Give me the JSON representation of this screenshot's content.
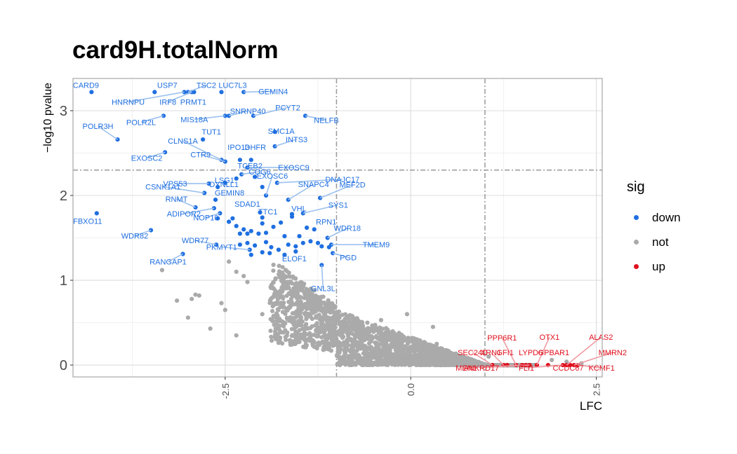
{
  "chart_data": {
    "type": "scatter",
    "title": "card9H.totalNorm",
    "xlabel": "LFC",
    "ylabel": "−log10 pvalue",
    "xlim": [
      -4.55,
      2.58
    ],
    "ylim": [
      -0.14,
      3.38
    ],
    "x_ticks": [
      -2.5,
      0.0,
      2.5
    ],
    "x_tick_labels": [
      "-2.5",
      "0.0",
      "2.5"
    ],
    "y_ticks": [
      0,
      1,
      2,
      3
    ],
    "y_tick_labels": [
      "0",
      "1",
      "2",
      "3"
    ],
    "grid": true,
    "threshold_lines": {
      "x": [
        -1,
        1
      ],
      "y": [
        2.3
      ]
    },
    "legend": {
      "title": "sig",
      "position": "right",
      "entries": [
        {
          "name": "down",
          "color": "#1f6fe0"
        },
        {
          "name": "not",
          "color": "#aaaaaa"
        },
        {
          "name": "up",
          "color": "#e0101e"
        }
      ]
    },
    "series": [
      {
        "name": "down",
        "color": "#1f6fe0",
        "points": [
          {
            "label": "CARD9",
            "x": -4.3,
            "y": 3.22
          },
          {
            "label": "USP7",
            "x": -3.45,
            "y": 3.22
          },
          {
            "label": "TSC2",
            "x": -3.0,
            "y": 3.22
          },
          {
            "label": "LUC7L3",
            "x": -2.55,
            "y": 3.22
          },
          {
            "label": "GEMIN4",
            "x": -2.25,
            "y": 3.22
          },
          {
            "label": "HNRNPU",
            "x": -3.05,
            "y": 3.22
          },
          {
            "label": "IRF8",
            "x": -2.95,
            "y": 3.22
          },
          {
            "label": "PRMT1",
            "x": -2.92,
            "y": 3.22
          },
          {
            "label": "SNRNP40",
            "x": -2.45,
            "y": 2.94
          },
          {
            "label": "PCYT2",
            "x": -2.12,
            "y": 2.94
          },
          {
            "label": "POLR2L",
            "x": -3.33,
            "y": 2.94
          },
          {
            "label": "MIS18A",
            "x": -2.5,
            "y": 2.94
          },
          {
            "label": "SMC1A",
            "x": -1.83,
            "y": 2.75
          },
          {
            "label": "NELFB",
            "x": -1.42,
            "y": 2.94
          },
          {
            "label": "POLR3H",
            "x": -3.95,
            "y": 2.66
          },
          {
            "label": "TUT1",
            "x": -2.8,
            "y": 2.66
          },
          {
            "label": "INTS3",
            "x": -1.83,
            "y": 2.58
          },
          {
            "label": "CLNS1A",
            "x": -2.55,
            "y": 2.42
          },
          {
            "label": "EXOSC2",
            "x": -3.31,
            "y": 2.51
          },
          {
            "label": "CTR9",
            "x": -2.5,
            "y": 2.4
          },
          {
            "label": "IPO13",
            "x": -2.3,
            "y": 2.42
          },
          {
            "label": "DHFR",
            "x": -2.15,
            "y": 2.42
          },
          {
            "label": "EXOSC9",
            "x": -2.2,
            "y": 2.33
          },
          {
            "label": "DNAJC17",
            "x": -1.8,
            "y": 2.15
          },
          {
            "label": "VPS53",
            "x": -2.72,
            "y": 2.14
          },
          {
            "label": "LSG1",
            "x": -2.5,
            "y": 2.15
          },
          {
            "label": "COG6",
            "x": -2.28,
            "y": 2.25
          },
          {
            "label": "SNAPC4",
            "x": -1.65,
            "y": 1.95
          },
          {
            "label": "CSNK1A1",
            "x": -2.78,
            "y": 2.03
          },
          {
            "label": "DYNLL1",
            "x": -2.6,
            "y": 2.1
          },
          {
            "label": "TCEB2",
            "x": -2.1,
            "y": 2.22
          },
          {
            "label": "EXOSC6",
            "x": -1.95,
            "y": 2.0
          },
          {
            "label": "MEF2D",
            "x": -1.22,
            "y": 1.97
          },
          {
            "label": "RNMT",
            "x": -2.9,
            "y": 1.86
          },
          {
            "label": "GEMIN8",
            "x": -2.63,
            "y": 1.95
          },
          {
            "label": "VHL",
            "x": -1.6,
            "y": 1.78
          },
          {
            "label": "SYS1",
            "x": -1.45,
            "y": 1.79
          },
          {
            "label": "FBXO11",
            "x": -4.23,
            "y": 1.79
          },
          {
            "label": "SDAD1",
            "x": -2.03,
            "y": 1.8
          },
          {
            "label": "ADIPOR2",
            "x": -2.65,
            "y": 1.85
          },
          {
            "label": "NOP10",
            "x": -2.57,
            "y": 1.79
          },
          {
            "label": "RPN1",
            "x": -1.3,
            "y": 1.6
          },
          {
            "label": "TTC1",
            "x": -2.0,
            "y": 1.67
          },
          {
            "label": "WDR82",
            "x": -3.5,
            "y": 1.59
          },
          {
            "label": "WDR18",
            "x": -1.12,
            "y": 1.5
          },
          {
            "label": "WDR77",
            "x": -2.62,
            "y": 1.42
          },
          {
            "label": "TMEM9",
            "x": -1.07,
            "y": 1.42
          },
          {
            "label": "PKMYT1",
            "x": -2.17,
            "y": 1.36
          },
          {
            "label": "RANGAP1",
            "x": -3.07,
            "y": 1.31
          },
          {
            "label": "ELOF1",
            "x": -1.55,
            "y": 1.34
          },
          {
            "label": "PGD",
            "x": -1.05,
            "y": 1.32
          },
          {
            "label": "GNL3L",
            "x": -1.2,
            "y": 1.18
          },
          {
            "x": -2.6,
            "y": 1.73
          },
          {
            "x": -2.45,
            "y": 1.69
          },
          {
            "x": -2.35,
            "y": 1.64
          },
          {
            "x": -2.3,
            "y": 1.55
          },
          {
            "x": -2.25,
            "y": 1.6
          },
          {
            "x": -2.2,
            "y": 1.55
          },
          {
            "x": -2.15,
            "y": 1.58
          },
          {
            "x": -2.05,
            "y": 1.55
          },
          {
            "x": -1.95,
            "y": 1.56
          },
          {
            "x": -1.85,
            "y": 1.63
          },
          {
            "x": -1.7,
            "y": 1.52
          },
          {
            "x": -2.3,
            "y": 1.42
          },
          {
            "x": -2.2,
            "y": 1.44
          },
          {
            "x": -2.1,
            "y": 1.41
          },
          {
            "x": -1.95,
            "y": 1.45
          },
          {
            "x": -1.88,
            "y": 1.39
          },
          {
            "x": -1.78,
            "y": 1.36
          },
          {
            "x": -1.65,
            "y": 1.42
          },
          {
            "x": -1.55,
            "y": 1.4
          },
          {
            "x": -1.45,
            "y": 1.44
          },
          {
            "x": -1.35,
            "y": 1.46
          },
          {
            "x": -1.2,
            "y": 1.4
          },
          {
            "x": -1.1,
            "y": 1.39
          },
          {
            "x": -2.0,
            "y": 1.33
          },
          {
            "x": -1.9,
            "y": 1.32
          },
          {
            "x": -2.15,
            "y": 1.3
          },
          {
            "x": -1.7,
            "y": 1.3
          },
          {
            "x": -1.6,
            "y": 1.75
          },
          {
            "x": -1.75,
            "y": 1.68
          },
          {
            "x": -2.4,
            "y": 1.73
          },
          {
            "x": -2.0,
            "y": 1.74
          },
          {
            "x": -1.4,
            "y": 1.62
          },
          {
            "x": -1.5,
            "y": 1.52
          },
          {
            "x": -2.35,
            "y": 2.2
          },
          {
            "x": -2.0,
            "y": 2.1
          },
          {
            "x": -1.25,
            "y": 1.44
          }
        ]
      },
      {
        "name": "up",
        "color": "#e0101e",
        "points": [
          {
            "label": "PPP6R1",
            "x": 1.42,
            "y": 0.0
          },
          {
            "label": "OTX1",
            "x": 1.7,
            "y": 0.0
          },
          {
            "label": "ALAS2",
            "x": 2.1,
            "y": 0.0
          },
          {
            "label": "SEC24D",
            "x": 1.1,
            "y": 0.0
          },
          {
            "label": "XRN1",
            "x": 1.25,
            "y": 0.0
          },
          {
            "label": "GFI1",
            "x": 1.3,
            "y": 0.0
          },
          {
            "label": "LYPD6",
            "x": 1.55,
            "y": 0.0
          },
          {
            "label": "GPBAR1",
            "x": 1.85,
            "y": 0.0
          },
          {
            "label": "MMRN2",
            "x": 2.2,
            "y": 0.0
          },
          {
            "label": "MEN1",
            "x": 1.6,
            "y": 0.0
          },
          {
            "label": "ANKRD17",
            "x": 1.5,
            "y": 0.0
          },
          {
            "label": "FLI1",
            "x": 2.05,
            "y": 0.0
          },
          {
            "label": "CCDC67",
            "x": 2.15,
            "y": 0.0
          },
          {
            "label": "KCMF1",
            "x": 2.25,
            "y": 0.0
          }
        ]
      },
      {
        "name": "not",
        "color": "#aaaaaa",
        "note_generated": true
      }
    ]
  }
}
